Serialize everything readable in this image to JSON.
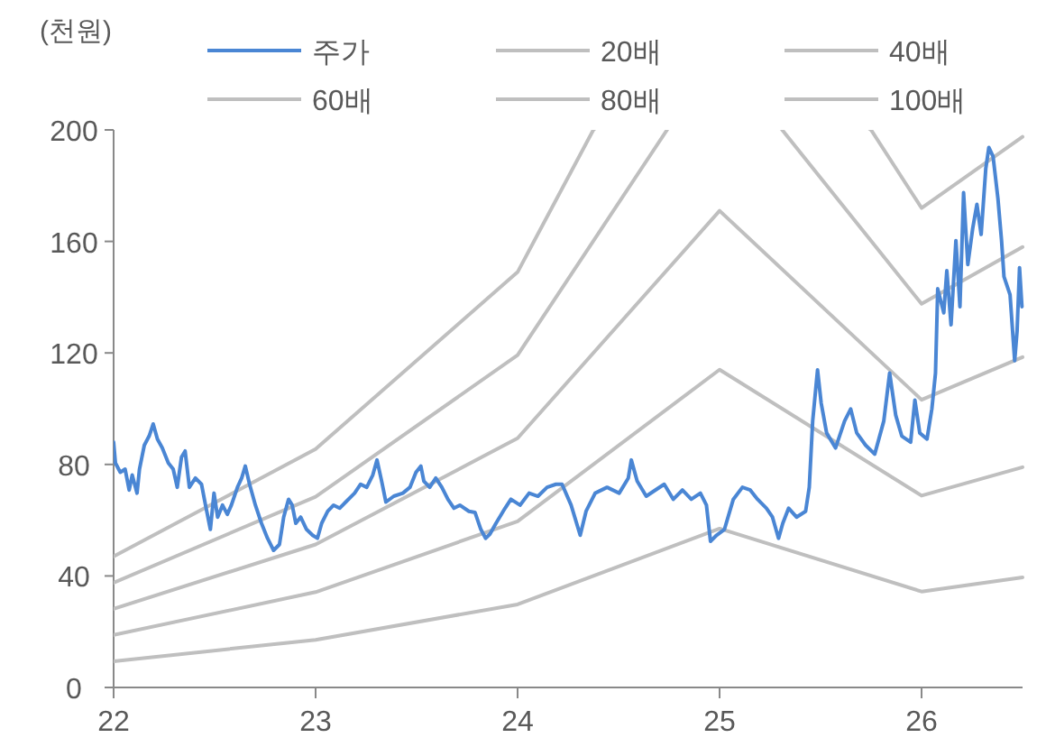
{
  "chart_data": {
    "type": "line",
    "ylabel": "(천원)",
    "xlim": [
      22,
      26.5
    ],
    "xticks": [
      22,
      23,
      24,
      25,
      26
    ],
    "ylim": [
      0,
      200
    ],
    "yticks": [
      0,
      40,
      80,
      120,
      160,
      200
    ],
    "grid": false,
    "legend": "top",
    "series": [
      {
        "name": "주가",
        "color": "#4a86d4",
        "x": [
          22.0,
          22.009,
          22.033,
          22.057,
          22.077,
          22.092,
          22.116,
          22.128,
          22.152,
          22.176,
          22.196,
          22.217,
          22.241,
          22.271,
          22.295,
          22.315,
          22.336,
          22.354,
          22.375,
          22.405,
          22.435,
          22.455,
          22.479,
          22.497,
          22.515,
          22.539,
          22.563,
          22.583,
          22.613,
          22.634,
          22.652,
          22.673,
          22.702,
          22.732,
          22.762,
          22.792,
          22.821,
          22.842,
          22.866,
          22.884,
          22.902,
          22.926,
          22.955,
          22.985,
          23.009,
          23.03,
          23.06,
          23.089,
          23.119,
          23.149,
          23.193,
          23.223,
          23.253,
          23.283,
          23.304,
          23.327,
          23.348,
          23.387,
          23.432,
          23.467,
          23.497,
          23.521,
          23.536,
          23.565,
          23.595,
          23.625,
          23.655,
          23.685,
          23.714,
          23.759,
          23.789,
          23.818,
          23.842,
          23.863,
          23.893,
          23.938,
          23.967,
          24.012,
          24.057,
          24.101,
          24.146,
          24.19,
          24.22,
          24.265,
          24.31,
          24.339,
          24.384,
          24.443,
          24.503,
          24.548,
          24.563,
          24.592,
          24.637,
          24.682,
          24.726,
          24.771,
          24.816,
          24.86,
          24.905,
          24.935,
          24.955,
          24.985,
          25.024,
          25.068,
          25.113,
          25.152,
          25.188,
          25.232,
          25.262,
          25.292,
          25.313,
          25.342,
          25.381,
          25.426,
          25.444,
          25.461,
          25.485,
          25.503,
          25.53,
          25.574,
          25.619,
          25.649,
          25.679,
          25.723,
          25.768,
          25.813,
          25.842,
          25.872,
          25.902,
          25.946,
          25.967,
          25.991,
          26.027,
          26.051,
          26.069,
          26.08,
          26.11,
          26.125,
          26.146,
          26.17,
          26.19,
          26.208,
          26.229,
          26.253,
          26.274,
          26.295,
          26.318,
          26.333,
          26.354,
          26.378,
          26.396,
          26.408,
          26.438,
          26.461,
          26.473,
          26.485,
          26.497
        ],
        "values": [
          88.0,
          80.5,
          77.2,
          78.3,
          70.8,
          76.2,
          69.7,
          78.3,
          86.9,
          90.2,
          94.5,
          89.1,
          85.9,
          80.5,
          78.3,
          71.8,
          82.6,
          84.8,
          71.8,
          75.1,
          72.9,
          65.4,
          56.7,
          69.7,
          61.1,
          65.4,
          62.1,
          65.4,
          71.8,
          75.1,
          79.4,
          72.9,
          65.4,
          58.9,
          53.5,
          49.2,
          51.3,
          61.1,
          67.5,
          65.4,
          58.9,
          61.1,
          56.7,
          54.6,
          53.5,
          58.9,
          63.2,
          65.4,
          64.3,
          66.5,
          69.7,
          72.9,
          71.8,
          76.2,
          81.6,
          74.0,
          66.5,
          68.6,
          69.7,
          71.8,
          77.2,
          79.4,
          74.0,
          71.8,
          75.1,
          71.8,
          67.5,
          64.3,
          65.4,
          63.2,
          62.8,
          56.7,
          53.5,
          55.0,
          58.9,
          64.3,
          67.5,
          65.4,
          69.7,
          68.6,
          71.8,
          72.9,
          72.9,
          65.4,
          54.6,
          63.2,
          69.7,
          71.8,
          69.7,
          75.1,
          81.6,
          74.0,
          68.6,
          70.8,
          72.9,
          67.5,
          70.8,
          67.5,
          69.7,
          65.4,
          52.4,
          54.6,
          56.7,
          67.5,
          71.8,
          70.8,
          67.5,
          64.3,
          61.1,
          53.5,
          58.9,
          64.3,
          61.1,
          63.2,
          71.8,
          95.6,
          113.9,
          102.0,
          91.3,
          85.9,
          95.6,
          99.9,
          91.3,
          86.9,
          83.7,
          95.6,
          112.8,
          97.7,
          90.2,
          88.0,
          103.1,
          91.3,
          89.1,
          99.9,
          112.8,
          143.0,
          134.4,
          149.5,
          130.1,
          160.3,
          136.6,
          177.5,
          151.7,
          164.6,
          173.3,
          162.5,
          186.2,
          193.7,
          190.5,
          175.4,
          160.3,
          147.4,
          140.9,
          117.2,
          128.0,
          150.6,
          136.6
        ]
      },
      {
        "name": "20배",
        "color": "#bfbfbf",
        "x": [
          22,
          23,
          24,
          25,
          26,
          26.5
        ],
        "values": [
          9.4,
          17.1,
          29.8,
          57,
          34.4,
          39.5
        ]
      },
      {
        "name": "40배",
        "color": "#bfbfbf",
        "x": [
          22,
          23,
          24,
          25,
          26,
          26.5
        ],
        "values": [
          18.8,
          34.2,
          59.6,
          114,
          68.8,
          79
        ]
      },
      {
        "name": "60배",
        "color": "#bfbfbf",
        "x": [
          22,
          23,
          24,
          25,
          26,
          26.5
        ],
        "values": [
          28.2,
          51.3,
          89.4,
          171,
          103.2,
          118.5
        ]
      },
      {
        "name": "80배",
        "color": "#bfbfbf",
        "x": [
          22,
          23,
          24,
          24.74,
          25,
          25.31,
          26,
          26.5
        ],
        "values": [
          37.6,
          68.4,
          119.2,
          200,
          null,
          200,
          137.6,
          158
        ]
      },
      {
        "name": "100배",
        "color": "#bfbfbf",
        "x": [
          22,
          23,
          24,
          24.375,
          25,
          25.75,
          26,
          26.5
        ],
        "values": [
          47,
          85.5,
          149,
          200,
          null,
          200,
          172,
          197.5
        ]
      }
    ]
  }
}
